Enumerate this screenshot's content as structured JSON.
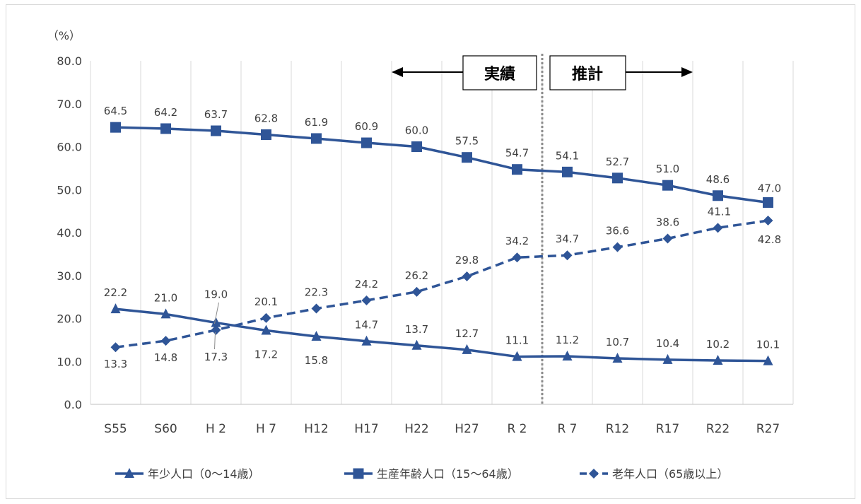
{
  "chart_data": {
    "type": "line",
    "unit_label": "（%）",
    "categories": [
      "S55",
      "S60",
      "H 2",
      "H 7",
      "H12",
      "H17",
      "H22",
      "H27",
      "R 2",
      "R 7",
      "R12",
      "R17",
      "R22",
      "R27"
    ],
    "ylim": [
      0,
      80
    ],
    "yticks": [
      "0.0",
      "10.0",
      "20.0",
      "30.0",
      "40.0",
      "50.0",
      "60.0",
      "70.0",
      "80.0"
    ],
    "grid": "vertical",
    "legend_position": "bottom",
    "divider_after_category": "R 2",
    "annotations": {
      "actual": "実績",
      "estimate": "推計"
    },
    "series": [
      {
        "name": "年少人口（0～14歳）",
        "marker": "triangle",
        "color": "#2f5597",
        "values": [
          22.2,
          21.0,
          19.0,
          17.2,
          15.8,
          14.7,
          13.7,
          12.7,
          11.1,
          11.2,
          10.7,
          10.4,
          10.2,
          10.1
        ]
      },
      {
        "name": "生産年齢人口（15～64歳）",
        "marker": "square",
        "color": "#2f5597",
        "values": [
          64.5,
          64.2,
          63.7,
          62.8,
          61.9,
          60.9,
          60.0,
          57.5,
          54.7,
          54.1,
          52.7,
          51.0,
          48.6,
          47.0
        ]
      },
      {
        "name": "老年人口（65歳以上）",
        "marker": "diamond",
        "color": "#2f5597",
        "dashed": true,
        "values": [
          13.3,
          14.8,
          17.3,
          20.1,
          22.3,
          24.2,
          26.2,
          29.8,
          34.2,
          34.7,
          36.6,
          38.6,
          41.1,
          42.8
        ]
      }
    ]
  }
}
